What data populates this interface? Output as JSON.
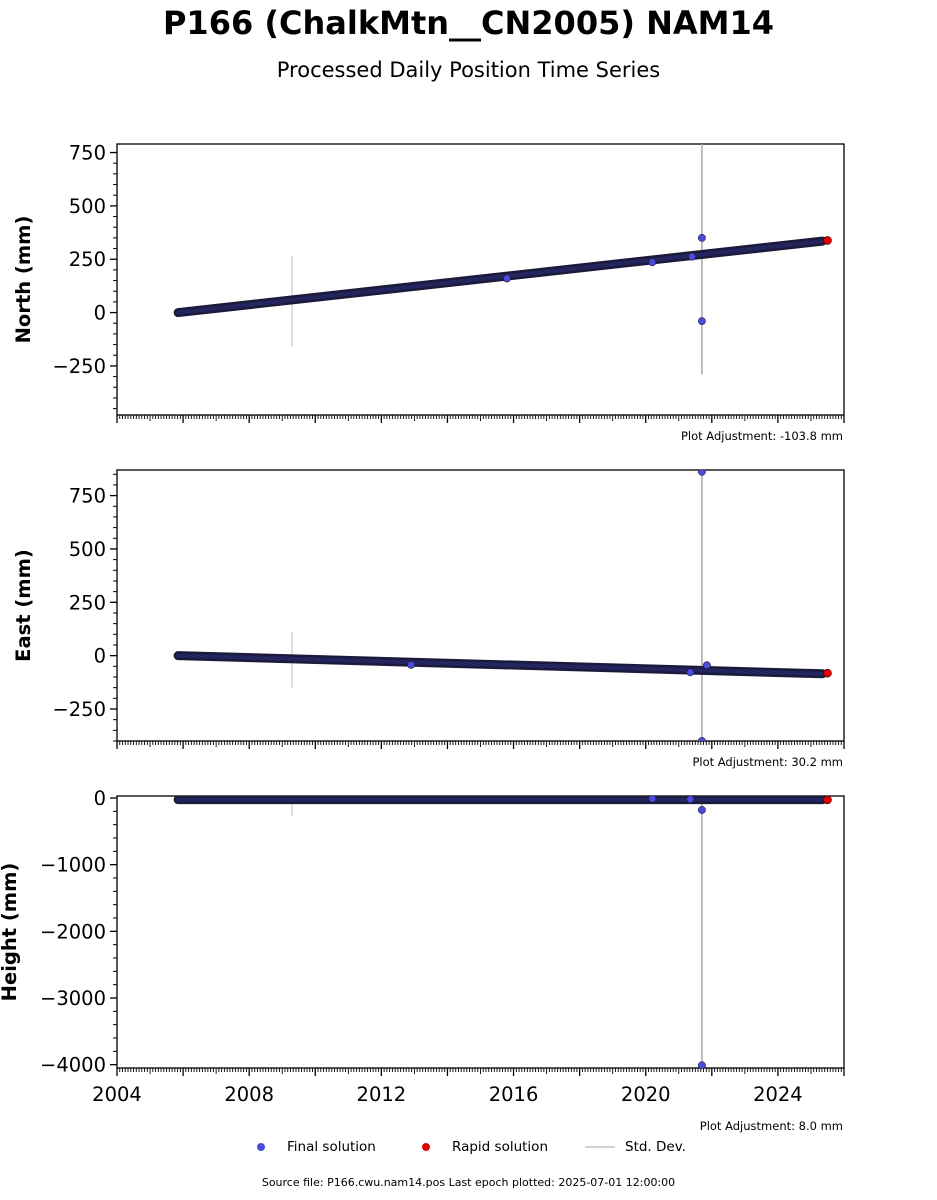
{
  "header": {
    "title": "P166 (ChalkMtn__CN2005) NAM14",
    "subtitle": "Processed Daily Position Time Series"
  },
  "legend": {
    "final_label": "Final solution",
    "rapid_label": "Rapid solution",
    "stddev_label": "Std. Dev."
  },
  "footer": {
    "source": "Source file: P166.cwu.nam14.pos  Last epoch plotted: 2025-07-01 12:00:00"
  },
  "colors": {
    "final": "#4b4bdf",
    "final_edge": "#1a1a3a",
    "rapid": "#e00000",
    "stddev": "#d3d3d3"
  },
  "chart_data": [
    {
      "type": "scatter",
      "ylabel": "North (mm)",
      "adjustment": "Plot Adjustment: -103.8 mm",
      "xlim": [
        2004,
        2026
      ],
      "ylim": [
        -480,
        790
      ],
      "yticks": [
        -250,
        0,
        250,
        500,
        750
      ],
      "ytick_labels": [
        "−250",
        "0",
        "250",
        "500",
        "750"
      ],
      "series": [
        {
          "role": "trend",
          "x_start": 2005.85,
          "y_start": 0,
          "x_end": 2025.35,
          "y_end": 335
        },
        {
          "role": "outliers",
          "points": [
            [
              2021.7,
              350
            ],
            [
              2021.7,
              -40
            ],
            [
              2021.4,
              262
            ],
            [
              2015.8,
              160
            ],
            [
              2020.2,
              236
            ]
          ]
        },
        {
          "role": "rapid",
          "points": [
            [
              2025.5,
              338
            ]
          ]
        },
        {
          "role": "stddev",
          "bars": [
            [
              2009.3,
              -160,
              265
            ],
            [
              2021.7,
              -290,
              790
            ]
          ]
        }
      ]
    },
    {
      "type": "scatter",
      "ylabel": "East (mm)",
      "adjustment": "Plot Adjustment: 30.2 mm",
      "xlim": [
        2004,
        2026
      ],
      "ylim": [
        -400,
        870
      ],
      "yticks": [
        -250,
        0,
        250,
        500,
        750
      ],
      "ytick_labels": [
        "−250",
        "0",
        "250",
        "500",
        "750"
      ],
      "series": [
        {
          "role": "trend",
          "x_start": 2005.85,
          "y_start": 0,
          "x_end": 2025.35,
          "y_end": -85
        },
        {
          "role": "outliers",
          "points": [
            [
              2021.7,
              862
            ],
            [
              2021.7,
              -400
            ],
            [
              2021.85,
              -45
            ],
            [
              2021.35,
              -78
            ],
            [
              2012.9,
              -43
            ]
          ]
        },
        {
          "role": "rapid",
          "points": [
            [
              2025.5,
              -82
            ]
          ]
        },
        {
          "role": "stddev",
          "bars": [
            [
              2009.3,
              -150,
              110
            ],
            [
              2021.7,
              -400,
              870
            ]
          ]
        }
      ]
    },
    {
      "type": "scatter",
      "ylabel": "Height (mm)",
      "adjustment": "Plot Adjustment: 8.0 mm",
      "xlabel": "",
      "xlim": [
        2004,
        2026
      ],
      "ylim": [
        -4050,
        30
      ],
      "yticks": [
        -4000,
        -3000,
        -2000,
        -1000,
        0
      ],
      "ytick_labels": [
        "−4000",
        "−3000",
        "−2000",
        "−1000",
        "0"
      ],
      "xticks": [
        2004,
        2008,
        2012,
        2016,
        2020,
        2024
      ],
      "series": [
        {
          "role": "trend",
          "x_start": 2005.85,
          "y_start": -25,
          "x_end": 2025.35,
          "y_end": -25
        },
        {
          "role": "outliers",
          "points": [
            [
              2021.7,
              -180
            ],
            [
              2021.7,
              -4010
            ],
            [
              2021.35,
              -20
            ],
            [
              2020.2,
              -10
            ]
          ]
        },
        {
          "role": "rapid",
          "points": [
            [
              2025.5,
              -28
            ]
          ]
        },
        {
          "role": "stddev",
          "bars": [
            [
              2009.3,
              -270,
              0
            ],
            [
              2021.7,
              -1300,
              30
            ],
            [
              2021.7,
              -4050,
              -1300
            ]
          ]
        }
      ]
    }
  ]
}
